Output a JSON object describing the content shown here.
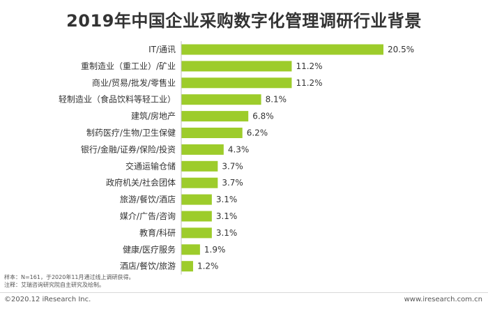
{
  "chart_data": {
    "type": "bar",
    "orientation": "horizontal",
    "title": "2019年中国企业采购数字化管理调研行业背景",
    "categories": [
      "IT/通讯",
      "重制造业（重工业）/矿业",
      "商业/贸易/批发/零售业",
      "轻制造业（食品饮料等轻工业）",
      "建筑/房地产",
      "制药医疗/生物/卫生保健",
      "银行/金融/证券/保险/投资",
      "交通运输仓储",
      "政府机关/社会团体",
      "旅游/餐饮/酒店",
      "媒介/广告/咨询",
      "教育/科研",
      "健康/医疗服务",
      "酒店/餐饮/旅游"
    ],
    "values": [
      20.5,
      11.2,
      11.2,
      8.1,
      6.8,
      6.2,
      4.3,
      3.7,
      3.7,
      3.1,
      3.1,
      3.1,
      1.9,
      1.2
    ],
    "value_labels": [
      "20.5%",
      "11.2%",
      "11.2%",
      "8.1%",
      "6.8%",
      "6.2%",
      "4.3%",
      "3.7%",
      "3.7%",
      "3.1%",
      "3.1%",
      "3.1%",
      "1.9%",
      "1.2%"
    ],
    "unit": "%",
    "xlim": [
      0,
      20.5
    ],
    "bar_color": "#9dcc2b",
    "grid": false,
    "legend": "none"
  },
  "notes": {
    "sample": "样本：N=161，于2020年11月通过线上调研获得。",
    "source": "注释：艾瑞咨询研究院自主研究及绘制。"
  },
  "footer": {
    "left": "©2020.12 iResearch Inc.",
    "right": "www.iresearch.com.cn"
  },
  "colors": {
    "bar": "#9dcc2b",
    "axis": "#bfbfbf",
    "text": "#333333",
    "rule": "#d9d9d9"
  }
}
